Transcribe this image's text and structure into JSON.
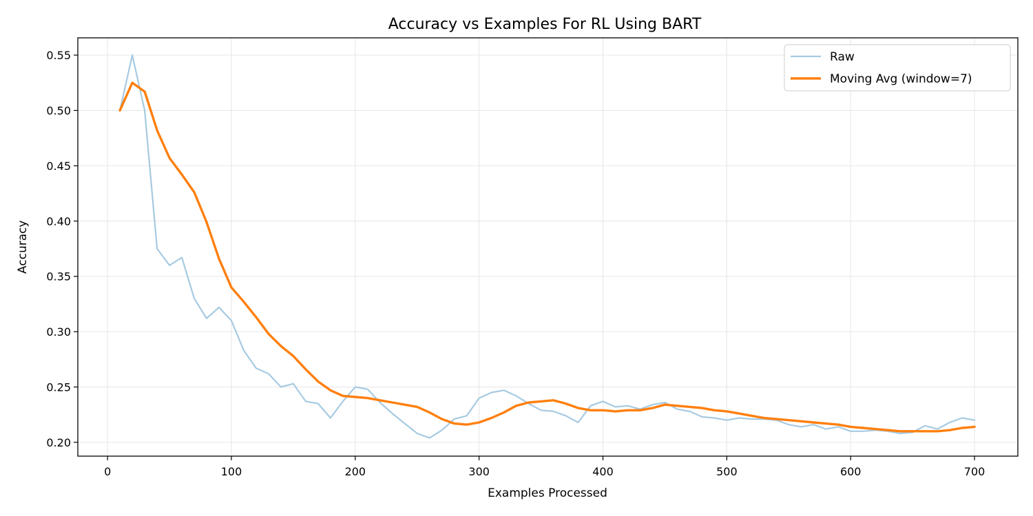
{
  "chart_data": {
    "type": "line",
    "title": "Accuracy vs Examples For RL Using BART",
    "xlabel": "Examples Processed",
    "ylabel": "Accuracy",
    "xlim": [
      -24,
      735
    ],
    "ylim": [
      0.1875,
      0.5656
    ],
    "xticks": [
      0,
      100,
      200,
      300,
      400,
      500,
      600,
      700
    ],
    "yticks": [
      0.2,
      0.25,
      0.3,
      0.35,
      0.4,
      0.45,
      0.5,
      0.55
    ],
    "xtick_labels": [
      "0",
      "100",
      "200",
      "300",
      "400",
      "500",
      "600",
      "700"
    ],
    "ytick_labels": [
      "0.20",
      "0.25",
      "0.30",
      "0.35",
      "0.40",
      "0.45",
      "0.50",
      "0.55"
    ],
    "grid": true,
    "legend_position": "top-right",
    "x": [
      10,
      20,
      30,
      40,
      50,
      60,
      70,
      80,
      90,
      100,
      110,
      120,
      130,
      140,
      150,
      160,
      170,
      180,
      190,
      200,
      210,
      220,
      230,
      240,
      250,
      260,
      270,
      280,
      290,
      300,
      310,
      320,
      330,
      340,
      350,
      360,
      370,
      380,
      390,
      400,
      410,
      420,
      430,
      440,
      450,
      460,
      470,
      480,
      490,
      500,
      510,
      520,
      530,
      540,
      550,
      560,
      570,
      580,
      590,
      600,
      610,
      620,
      630,
      640,
      650,
      660,
      670,
      680,
      690,
      700
    ],
    "series": [
      {
        "name": "Raw",
        "color": "#a6cae2",
        "values": [
          0.5,
          0.55,
          0.5,
          0.375,
          0.36,
          0.367,
          0.33,
          0.312,
          0.322,
          0.31,
          0.283,
          0.267,
          0.262,
          0.25,
          0.253,
          0.237,
          0.235,
          0.222,
          0.237,
          0.25,
          0.248,
          0.236,
          0.226,
          0.217,
          0.208,
          0.204,
          0.211,
          0.221,
          0.224,
          0.24,
          0.245,
          0.247,
          0.242,
          0.235,
          0.229,
          0.228,
          0.224,
          0.218,
          0.233,
          0.237,
          0.232,
          0.233,
          0.23,
          0.234,
          0.236,
          0.23,
          0.228,
          0.223,
          0.222,
          0.22,
          0.222,
          0.221,
          0.221,
          0.22,
          0.216,
          0.214,
          0.216,
          0.212,
          0.214,
          0.21,
          0.21,
          0.211,
          0.21,
          0.208,
          0.209,
          0.215,
          0.212,
          0.218,
          0.222,
          0.22
        ]
      },
      {
        "name": "Moving Avg (window=7)",
        "color": "#ff7f0e",
        "values": [
          0.5,
          0.525,
          0.517,
          0.482,
          0.457,
          0.442,
          0.426,
          0.399,
          0.366,
          0.34,
          0.327,
          0.313,
          0.298,
          0.287,
          0.278,
          0.266,
          0.255,
          0.247,
          0.242,
          0.241,
          0.24,
          0.238,
          0.236,
          0.234,
          0.232,
          0.227,
          0.221,
          0.217,
          0.216,
          0.218,
          0.222,
          0.227,
          0.233,
          0.236,
          0.237,
          0.238,
          0.235,
          0.231,
          0.229,
          0.229,
          0.228,
          0.229,
          0.229,
          0.231,
          0.234,
          0.233,
          0.232,
          0.231,
          0.229,
          0.228,
          0.226,
          0.224,
          0.222,
          0.221,
          0.22,
          0.219,
          0.218,
          0.217,
          0.216,
          0.214,
          0.213,
          0.212,
          0.211,
          0.21,
          0.21,
          0.21,
          0.21,
          0.211,
          0.213,
          0.214
        ]
      }
    ]
  }
}
